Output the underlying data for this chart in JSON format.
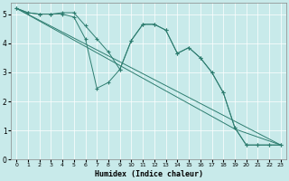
{
  "xlabel": "Humidex (Indice chaleur)",
  "bg_color": "#c8eaea",
  "line_color": "#2e7d70",
  "xlim": [
    -0.5,
    23.5
  ],
  "ylim": [
    0,
    5.4
  ],
  "yticks": [
    0,
    1,
    2,
    3,
    4,
    5
  ],
  "xticks": [
    0,
    1,
    2,
    3,
    4,
    5,
    6,
    7,
    8,
    9,
    10,
    11,
    12,
    13,
    14,
    15,
    16,
    17,
    18,
    19,
    20,
    21,
    22,
    23
  ],
  "series": [
    {
      "x": [
        0,
        1,
        2,
        3,
        4,
        5,
        6,
        7,
        8,
        9,
        10,
        11,
        12,
        13,
        14,
        15,
        16,
        17,
        18,
        19,
        20,
        21,
        22,
        23
      ],
      "y": [
        5.2,
        5.05,
        5.0,
        5.0,
        5.0,
        4.9,
        4.15,
        2.45,
        2.65,
        3.1,
        4.1,
        4.65,
        4.65,
        4.45,
        3.65,
        3.85,
        3.5,
        3.0,
        2.3,
        1.1,
        0.5,
        0.5,
        0.5,
        0.5
      ],
      "with_markers": true
    },
    {
      "x": [
        0,
        1,
        2,
        3,
        4,
        5,
        6,
        7,
        8,
        9,
        10,
        11,
        12,
        13,
        14,
        15,
        16,
        17,
        18,
        19,
        20,
        21,
        22,
        23
      ],
      "y": [
        5.2,
        5.05,
        5.0,
        5.0,
        5.05,
        5.05,
        4.6,
        4.15,
        3.7,
        3.1,
        4.1,
        4.65,
        4.65,
        4.45,
        3.65,
        3.85,
        3.5,
        3.0,
        2.3,
        1.1,
        0.5,
        0.5,
        0.5,
        0.5
      ],
      "with_markers": true
    },
    {
      "x": [
        0,
        23
      ],
      "y": [
        5.2,
        0.5
      ],
      "with_markers": false
    },
    {
      "x": [
        0,
        19,
        23
      ],
      "y": [
        5.2,
        1.05,
        0.5
      ],
      "with_markers": false
    }
  ]
}
